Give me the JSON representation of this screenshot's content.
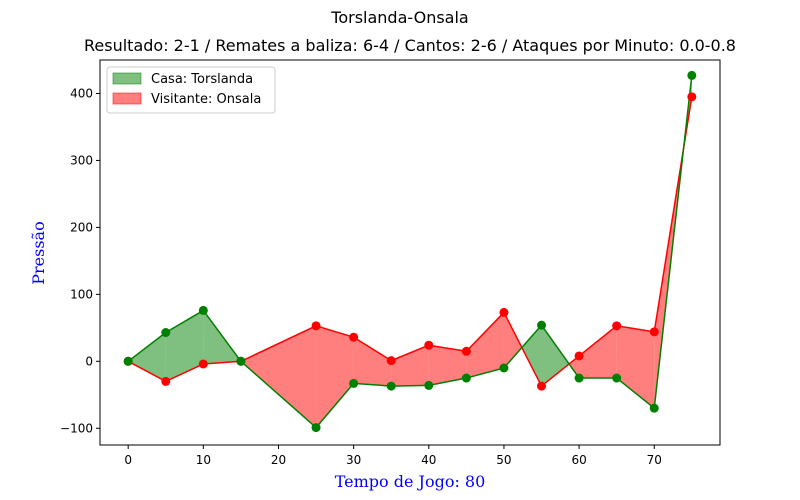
{
  "figure": {
    "title": "Torslanda-Onsala",
    "subtitle": "Resultado: 2-1 / Remates a baliza: 6-4 / Cantos: 2-6 / Ataques por Minuto: 0.0-0.8"
  },
  "chart_data": {
    "type": "line",
    "title": "Torslanda-Onsala",
    "subtitle": "Resultado: 2-1 / Remates a baliza: 6-4 / Cantos: 2-6 / Ataques por Minuto: 0.0-0.8",
    "xlabel": "Tempo de Jogo: 80",
    "ylabel": "Pressão",
    "xlim": [
      -3.75,
      78.75
    ],
    "ylim": [
      -125,
      450
    ],
    "xticks": [
      0,
      10,
      20,
      30,
      40,
      50,
      60,
      70
    ],
    "yticks": [
      -100,
      0,
      100,
      200,
      300,
      400
    ],
    "x": [
      0,
      5,
      10,
      15,
      25,
      30,
      35,
      40,
      45,
      50,
      55,
      60,
      65,
      70,
      75
    ],
    "series": [
      {
        "name": "Casa: Torslanda",
        "color": "#008000",
        "fill_color": "#008000",
        "values": [
          0,
          43,
          76,
          0,
          -99,
          -33,
          -37,
          -36,
          -25,
          -10,
          54,
          -25,
          -25,
          -70,
          427
        ]
      },
      {
        "name": "Visitante: Onsala",
        "color": "#ff0000",
        "fill_color": "#ff0000",
        "values": [
          0,
          -30,
          -4,
          0,
          53,
          36,
          1,
          24,
          15,
          73,
          -37,
          8,
          53,
          44,
          395
        ]
      }
    ],
    "legend_position": "top-left",
    "grid": false
  }
}
